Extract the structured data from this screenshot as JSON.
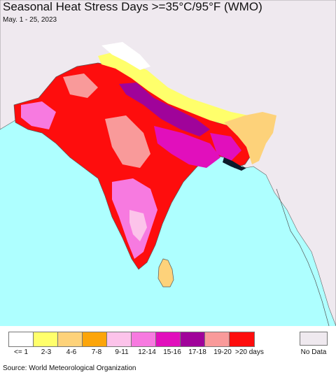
{
  "title": "Seasonal Heat Stress Days >=35°C/95°F (WMO)",
  "subtitle": "May. 1 - 25, 2023",
  "colors": {
    "ocean": "#aeffff",
    "land_nodata": "#efe9ef",
    "border": "#666666"
  },
  "legend": {
    "items": [
      {
        "label": "<= 1",
        "color": "#ffffff"
      },
      {
        "label": "2-3",
        "color": "#ffff6b"
      },
      {
        "label": "4-6",
        "color": "#fdd27a"
      },
      {
        "label": "7-8",
        "color": "#fca50a"
      },
      {
        "label": "9-11",
        "color": "#fcc3ea"
      },
      {
        "label": "12-14",
        "color": "#f77ae0"
      },
      {
        "label": "15-16",
        "color": "#e10fbc"
      },
      {
        "label": "17-18",
        "color": "#a0039a"
      },
      {
        "label": "19-20",
        "color": "#f99a9a"
      },
      {
        "label": ">20 days",
        "color": "#fe0d0d"
      }
    ],
    "nodata": {
      "label": "No Data",
      "color": "#efe9ef"
    }
  },
  "source": "Source: World Meteorological Organization"
}
